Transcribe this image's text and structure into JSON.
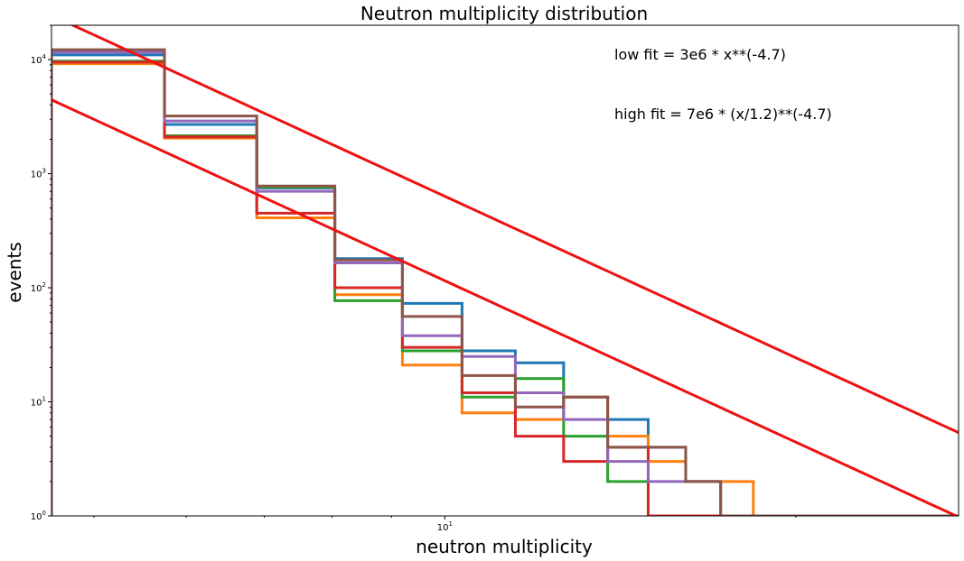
{
  "chart_data": {
    "type": "step-histogram",
    "title": "Neutron multiplicity distribution",
    "xlabel": "neutron multiplicity",
    "ylabel": "events",
    "xscale": "log",
    "yscale": "log",
    "xlim": [
      4,
      24
    ],
    "ylim": [
      1,
      20000
    ],
    "grid": false,
    "legend": "none",
    "bin_edges": [
      4,
      5,
      6,
      7,
      8,
      9,
      10,
      11,
      12,
      13,
      14,
      15,
      16,
      17,
      18,
      19,
      20,
      21,
      22,
      23,
      24
    ],
    "x_ticks": [
      {
        "value": 8.7,
        "base": "10",
        "exp": "1"
      }
    ],
    "y_ticks": [
      {
        "value": 1,
        "base": "10",
        "exp": "0"
      },
      {
        "value": 10,
        "base": "10",
        "exp": "1"
      },
      {
        "value": 100,
        "base": "10",
        "exp": "2"
      },
      {
        "value": 1000,
        "base": "10",
        "exp": "3"
      },
      {
        "value": 10000,
        "base": "10",
        "exp": "4"
      }
    ],
    "series": [
      {
        "color": "#1f77b4",
        "values": [
          11000,
          2700,
          750,
          180,
          73,
          28,
          22,
          11,
          7,
          4,
          2,
          1,
          1,
          1,
          1,
          1,
          1,
          1,
          1,
          1
        ]
      },
      {
        "color": "#ff7f0e",
        "values": [
          9200,
          2050,
          410,
          87,
          21,
          8,
          7,
          11,
          5,
          3,
          2,
          2,
          1,
          1,
          1,
          1,
          1,
          1,
          1,
          1
        ]
      },
      {
        "color": "#2ca02c",
        "values": [
          9700,
          2150,
          760,
          77,
          28,
          11,
          16,
          5,
          2,
          1,
          1,
          1,
          1,
          1,
          1,
          1,
          1,
          1,
          1,
          1
        ]
      },
      {
        "color": "#d62728",
        "values": [
          9500,
          2100,
          450,
          100,
          30,
          12,
          5,
          3,
          4,
          1,
          1,
          1,
          1,
          1,
          1,
          1,
          1,
          1,
          1,
          1
        ]
      },
      {
        "color": "#9467bd",
        "values": [
          11600,
          2900,
          700,
          165,
          38,
          25,
          12,
          7,
          3,
          2,
          2,
          1,
          1,
          1,
          1,
          1,
          1,
          1,
          1,
          1
        ]
      },
      {
        "color": "#8c564b",
        "values": [
          12200,
          3200,
          780,
          175,
          56,
          17,
          9,
          11,
          4,
          4,
          2,
          1,
          1,
          1,
          1,
          1,
          1,
          1,
          1,
          1
        ]
      }
    ],
    "fit_lines": [
      {
        "label": "low fit = 3e6 * x**(-4.7)",
        "amplitude": 3000000,
        "scale": 1.0,
        "exponent": -4.7,
        "color": "#ee1111"
      },
      {
        "label": "high fit = 7e6 * (x/1.2)**(-4.7)",
        "amplitude": 7000000,
        "scale": 1.2,
        "exponent": -4.7,
        "color": "#ee1111"
      }
    ]
  }
}
